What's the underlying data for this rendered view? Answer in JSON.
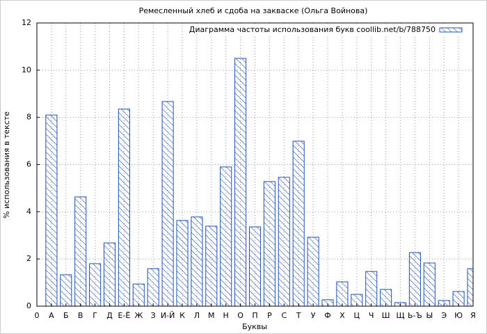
{
  "chart_data": {
    "type": "bar",
    "title": "Ремесленный хлеб и сдоба на закваске (Ольга Войнова)",
    "x_label": "Буквы",
    "y_label": "% использования в тексте",
    "x": [
      1,
      2,
      3,
      4,
      5,
      6,
      7,
      8,
      9,
      10,
      11,
      12,
      13,
      14,
      15,
      16,
      17,
      18,
      19,
      20,
      21,
      22,
      23,
      24,
      25,
      26,
      27,
      28,
      29,
      30
    ],
    "series": [
      {
        "name": "Диаграмма частоты использования букв coollib.net/b/788750",
        "color": "#1f4fb4",
        "values": [
          8.1,
          1.33,
          4.63,
          1.8,
          2.68,
          8.35,
          0.94,
          1.59,
          8.67,
          3.63,
          3.78,
          3.39,
          5.9,
          10.5,
          3.36,
          5.28,
          5.46,
          6.99,
          2.92,
          0.27,
          1.03,
          0.5,
          1.47,
          0.71,
          0.15,
          2.27,
          1.83,
          0.24,
          0.62,
          1.59
        ]
      }
    ],
    "xlim": [
      0,
      30
    ],
    "xticks": [
      0,
      {
        "value": 1,
        "label": "А"
      },
      {
        "value": 2,
        "label": "Б"
      },
      {
        "value": 3,
        "label": "В"
      },
      {
        "value": 4,
        "label": "Г"
      },
      {
        "value": 5,
        "label": "Д"
      },
      {
        "value": 6,
        "label": "Е-Ё"
      },
      {
        "value": 7,
        "label": "Ж"
      },
      {
        "value": 8,
        "label": "З"
      },
      {
        "value": 9,
        "label": "И-Й"
      },
      {
        "value": 10,
        "label": "К"
      },
      {
        "value": 11,
        "label": "Л"
      },
      {
        "value": 12,
        "label": "М"
      },
      {
        "value": 13,
        "label": "Н"
      },
      {
        "value": 14,
        "label": "О"
      },
      {
        "value": 15,
        "label": "П"
      },
      {
        "value": 16,
        "label": "Р"
      },
      {
        "value": 17,
        "label": "С"
      },
      {
        "value": 18,
        "label": "Т"
      },
      {
        "value": 19,
        "label": "У"
      },
      {
        "value": 20,
        "label": "Ф"
      },
      {
        "value": 21,
        "label": "Х"
      },
      {
        "value": 22,
        "label": "Ц"
      },
      {
        "value": 23,
        "label": "Ч"
      },
      {
        "value": 24,
        "label": "Ш"
      },
      {
        "value": 25,
        "label": "Щ"
      },
      {
        "value": 26,
        "label": "Ь-Ъ"
      },
      {
        "value": 27,
        "label": "Ы"
      },
      {
        "value": 28,
        "label": "Э"
      },
      {
        "value": 29,
        "label": "Ю"
      },
      {
        "value": 30,
        "label": "Я"
      }
    ],
    "ylim": [
      0,
      12
    ],
    "yticks": [
      0,
      2,
      4,
      6,
      8,
      10,
      12
    ],
    "grid": true,
    "legend": "upper right"
  }
}
